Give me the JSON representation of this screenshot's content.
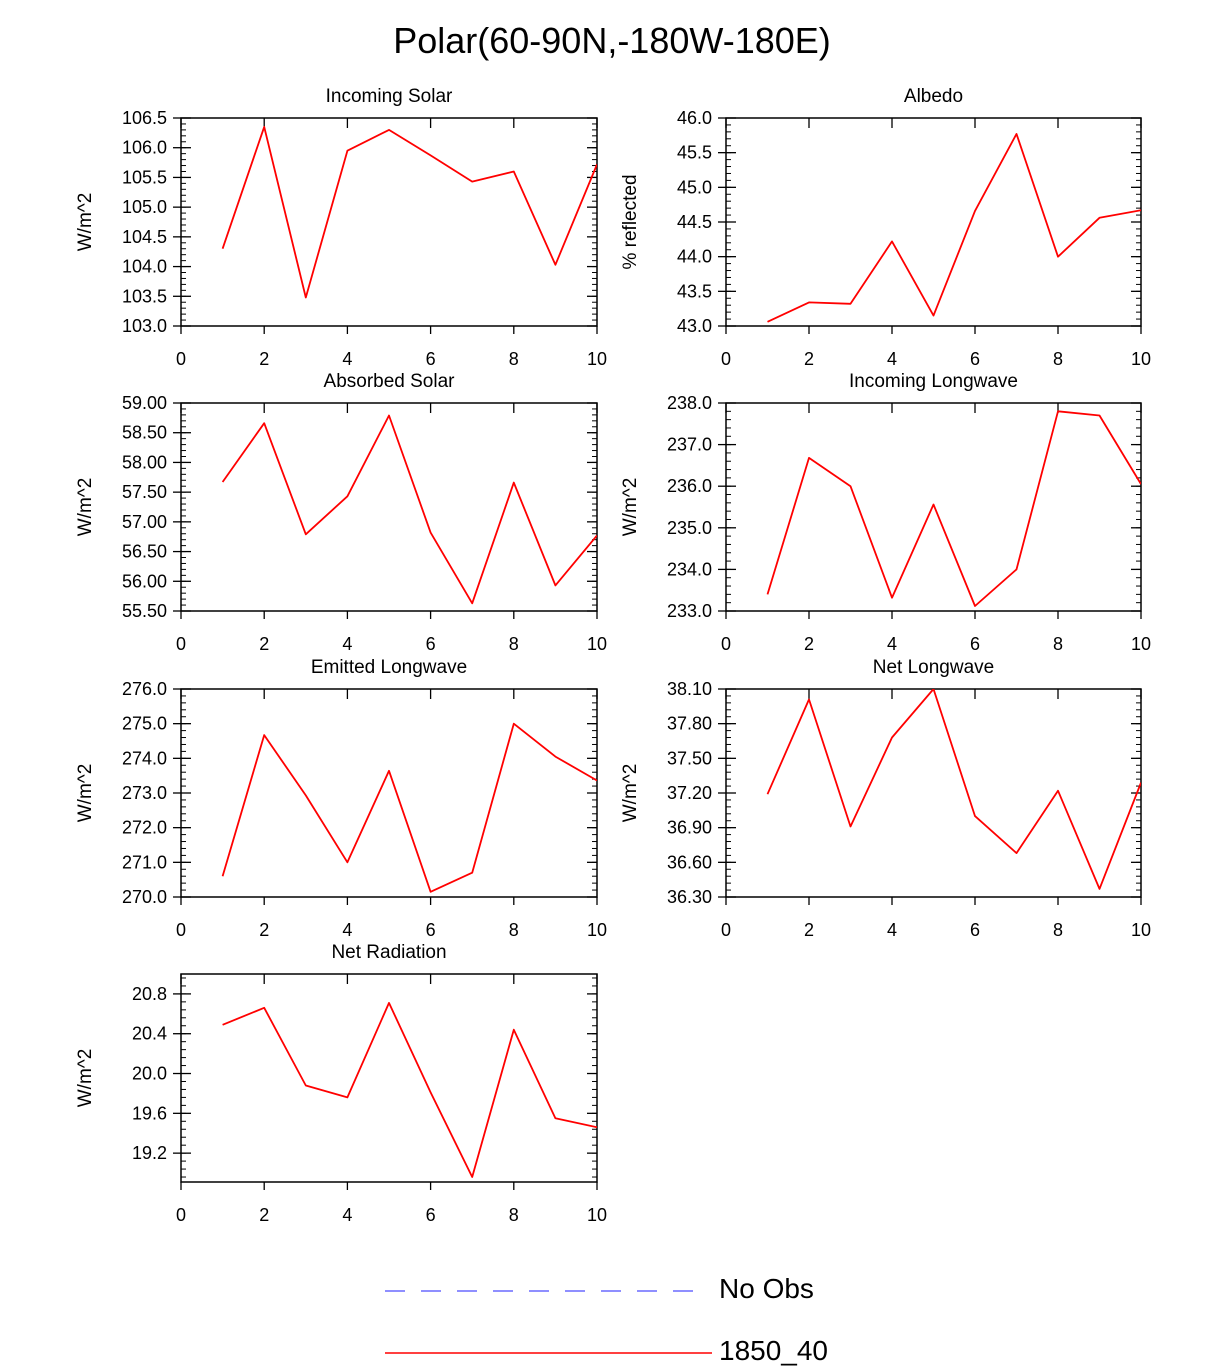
{
  "title": "Polar(60-90N,-180W-180E)",
  "colors": {
    "series": "#ff0000",
    "noobs": "#6a6aff",
    "axis": "#000000"
  },
  "legend": {
    "noobs_label": "No Obs",
    "series_label": "1850_40"
  },
  "chart_data": [
    {
      "type": "line",
      "title": "Incoming Solar",
      "ylabel": "W/m^2",
      "x": [
        1,
        2,
        3,
        4,
        5,
        6,
        7,
        8,
        9,
        10
      ],
      "values": [
        104.3,
        106.35,
        103.48,
        105.95,
        106.3,
        105.87,
        105.43,
        105.6,
        104.03,
        105.72
      ],
      "xlim": [
        0,
        10
      ],
      "ylim": [
        103.0,
        106.5
      ],
      "yticks": [
        103.0,
        103.5,
        104.0,
        104.5,
        105.0,
        105.5,
        106.0,
        106.5
      ],
      "ytick_labels": [
        "103.0",
        "103.5",
        "104.0",
        "104.5",
        "105.0",
        "105.5",
        "106.0",
        "106.5"
      ],
      "xticks": [
        0,
        2,
        4,
        6,
        8,
        10
      ],
      "xtick_labels": [
        "0",
        "2",
        "4",
        "6",
        "8",
        "10"
      ],
      "series_name": "1850_40"
    },
    {
      "type": "line",
      "title": "Albedo",
      "ylabel": "% reflected",
      "x": [
        1,
        2,
        3,
        4,
        5,
        6,
        7,
        8,
        9,
        10
      ],
      "values": [
        43.06,
        43.34,
        43.32,
        44.22,
        43.15,
        44.66,
        45.77,
        44.0,
        44.56,
        44.67
      ],
      "xlim": [
        0,
        10
      ],
      "ylim": [
        43.0,
        46.0
      ],
      "yticks": [
        43.0,
        43.5,
        44.0,
        44.5,
        45.0,
        45.5,
        46.0
      ],
      "ytick_labels": [
        "43.0",
        "43.5",
        "44.0",
        "44.5",
        "45.0",
        "45.5",
        "46.0"
      ],
      "xticks": [
        0,
        2,
        4,
        6,
        8,
        10
      ],
      "xtick_labels": [
        "0",
        "2",
        "4",
        "6",
        "8",
        "10"
      ],
      "series_name": "1850_40"
    },
    {
      "type": "line",
      "title": "Absorbed Solar",
      "ylabel": "W/m^2",
      "x": [
        1,
        2,
        3,
        4,
        5,
        6,
        7,
        8,
        9,
        10
      ],
      "values": [
        57.67,
        58.66,
        56.79,
        57.43,
        58.79,
        56.82,
        55.63,
        57.66,
        55.93,
        56.77
      ],
      "xlim": [
        0,
        10
      ],
      "ylim": [
        55.5,
        59.0
      ],
      "yticks": [
        55.5,
        56.0,
        56.5,
        57.0,
        57.5,
        58.0,
        58.5,
        59.0
      ],
      "ytick_labels": [
        "55.50",
        "56.00",
        "56.50",
        "57.00",
        "57.50",
        "58.00",
        "58.50",
        "59.00"
      ],
      "xticks": [
        0,
        2,
        4,
        6,
        8,
        10
      ],
      "xtick_labels": [
        "0",
        "2",
        "4",
        "6",
        "8",
        "10"
      ],
      "series_name": "1850_40"
    },
    {
      "type": "line",
      "title": "Incoming Longwave",
      "ylabel": "W/m^2",
      "x": [
        1,
        2,
        3,
        4,
        5,
        6,
        7,
        8,
        9,
        10
      ],
      "values": [
        233.4,
        236.68,
        236.0,
        233.32,
        235.56,
        233.12,
        234.0,
        237.8,
        237.7,
        236.05
      ],
      "xlim": [
        0,
        10
      ],
      "ylim": [
        233.0,
        238.0
      ],
      "yticks": [
        233,
        234,
        235,
        236,
        237,
        238
      ],
      "ytick_labels": [
        "233.0",
        "234.0",
        "235.0",
        "236.0",
        "237.0",
        "238.0"
      ],
      "xticks": [
        0,
        2,
        4,
        6,
        8,
        10
      ],
      "xtick_labels": [
        "0",
        "2",
        "4",
        "6",
        "8",
        "10"
      ],
      "series_name": "1850_40"
    },
    {
      "type": "line",
      "title": "Emitted Longwave",
      "ylabel": "W/m^2",
      "x": [
        1,
        2,
        3,
        4,
        5,
        6,
        7,
        8,
        9,
        10
      ],
      "values": [
        270.6,
        274.67,
        272.93,
        271.0,
        273.64,
        270.15,
        270.7,
        275.0,
        274.05,
        273.36
      ],
      "xlim": [
        0,
        10
      ],
      "ylim": [
        270.0,
        276.0
      ],
      "yticks": [
        270,
        271,
        272,
        273,
        274,
        275,
        276
      ],
      "ytick_labels": [
        "270.0",
        "271.0",
        "272.0",
        "273.0",
        "274.0",
        "275.0",
        "276.0"
      ],
      "xticks": [
        0,
        2,
        4,
        6,
        8,
        10
      ],
      "xtick_labels": [
        "0",
        "2",
        "4",
        "6",
        "8",
        "10"
      ],
      "series_name": "1850_40"
    },
    {
      "type": "line",
      "title": "Net Longwave",
      "ylabel": "W/m^2",
      "x": [
        1,
        2,
        3,
        4,
        5,
        6,
        7,
        8,
        9,
        10
      ],
      "values": [
        37.19,
        38.01,
        36.91,
        37.68,
        38.1,
        37.0,
        36.68,
        37.22,
        36.37,
        37.29
      ],
      "xlim": [
        0,
        10
      ],
      "ylim": [
        36.3,
        38.1
      ],
      "yticks": [
        36.3,
        36.6,
        36.9,
        37.2,
        37.5,
        37.8,
        38.1
      ],
      "ytick_labels": [
        "36.30",
        "36.60",
        "36.90",
        "37.20",
        "37.50",
        "37.80",
        "38.10"
      ],
      "xticks": [
        0,
        2,
        4,
        6,
        8,
        10
      ],
      "xtick_labels": [
        "0",
        "2",
        "4",
        "6",
        "8",
        "10"
      ],
      "series_name": "1850_40"
    },
    {
      "type": "line",
      "title": "Net Radiation",
      "ylabel": "W/m^2",
      "x": [
        1,
        2,
        3,
        4,
        5,
        6,
        7,
        8,
        9,
        10
      ],
      "values": [
        20.49,
        20.66,
        19.88,
        19.76,
        20.71,
        19.81,
        18.96,
        20.44,
        19.55,
        19.46
      ],
      "xlim": [
        0,
        10
      ],
      "ylim": [
        18.91,
        21.0
      ],
      "yticks": [
        19.2,
        19.6,
        20.0,
        20.4,
        20.8
      ],
      "ytick_labels": [
        "19.2",
        "19.6",
        "20.0",
        "20.4",
        "20.8"
      ],
      "xticks": [
        0,
        2,
        4,
        6,
        8,
        10
      ],
      "xtick_labels": [
        "0",
        "2",
        "4",
        "6",
        "8",
        "10"
      ],
      "series_name": "1850_40"
    }
  ]
}
